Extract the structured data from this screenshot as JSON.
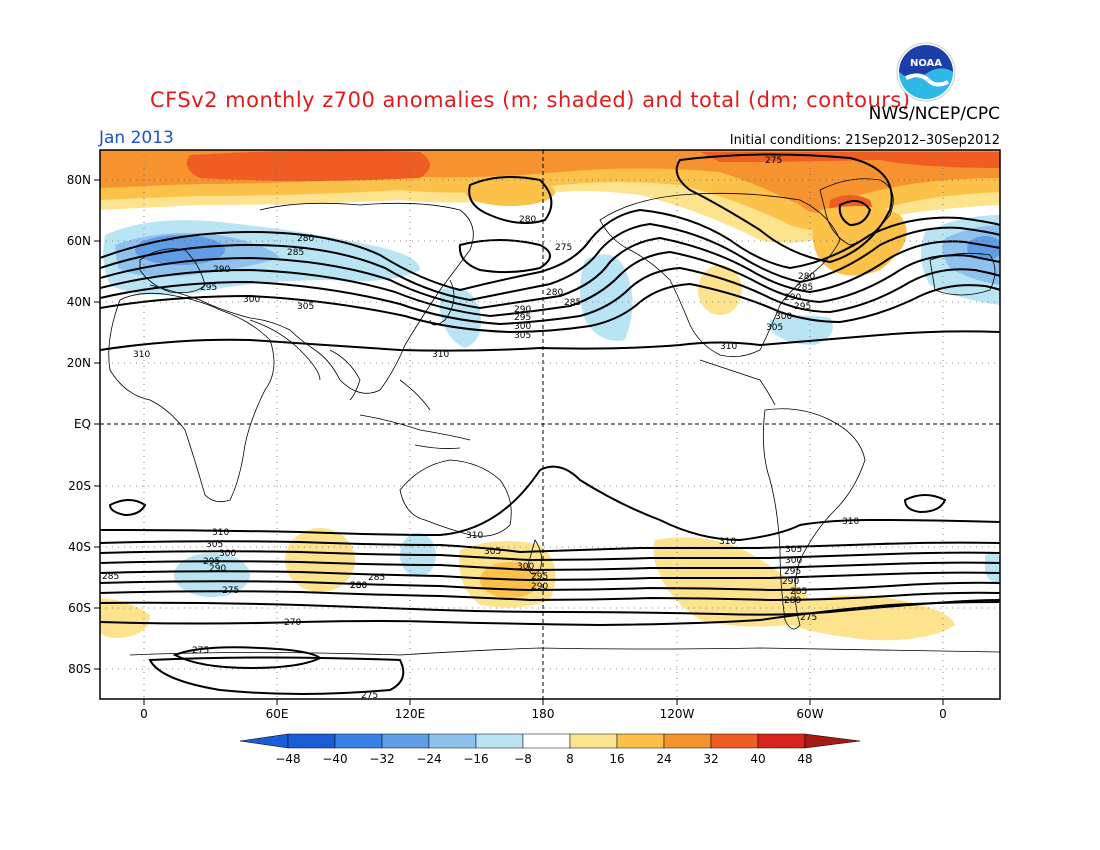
{
  "header": {
    "title": "CFSv2 monthly z700 anomalies (m; shaded) and total (dm; contours)",
    "agency": "NWS/NCEP/CPC",
    "period": "Jan 2013",
    "initial_conditions": "Initial conditions: 21Sep2012–30Sep2012",
    "logo_text": "NOAA"
  },
  "map": {
    "lat_labels": [
      "80N",
      "60N",
      "40N",
      "20N",
      "EQ",
      "20S",
      "40S",
      "60S",
      "80S"
    ],
    "lon_labels": [
      "0",
      "60E",
      "120E",
      "180",
      "120W",
      "60W",
      "0"
    ],
    "colors": {
      "neg48": "#1b5dd6",
      "neg40": "#3b82e8",
      "neg32": "#5f9de6",
      "neg24": "#8fc1ef",
      "neg16": "#b8e4f4",
      "zero": "#ffffff",
      "pos8": "#fde38e",
      "pos16": "#fbc149",
      "pos24": "#f7932f",
      "pos32": "#f05d23",
      "pos40": "#d8241b",
      "contour": "#000000"
    },
    "contour_labels": [
      {
        "id": "c275-npac",
        "text": "275"
      },
      {
        "id": "c280-npac",
        "text": "280"
      },
      {
        "id": "c280-eu",
        "text": "280"
      },
      {
        "id": "c285-eu",
        "text": "285"
      },
      {
        "id": "c290-eu",
        "text": "290"
      },
      {
        "id": "c295-eu",
        "text": "295"
      },
      {
        "id": "c300-eu",
        "text": "300"
      },
      {
        "id": "c305-as",
        "text": "305"
      },
      {
        "id": "c310-eq",
        "text": "310"
      },
      {
        "id": "c310-as",
        "text": "310"
      },
      {
        "id": "c280-pac",
        "text": "280"
      },
      {
        "id": "c285-pac",
        "text": "285"
      },
      {
        "id": "c290-pac",
        "text": "290"
      },
      {
        "id": "c295-pac",
        "text": "295"
      },
      {
        "id": "c300-pac",
        "text": "300"
      },
      {
        "id": "c305-pac",
        "text": "305"
      },
      {
        "id": "c275-gr",
        "text": "275"
      },
      {
        "id": "c280-na",
        "text": "280"
      },
      {
        "id": "c285-na",
        "text": "285"
      },
      {
        "id": "c290-na",
        "text": "290"
      },
      {
        "id": "c295-na",
        "text": "295"
      },
      {
        "id": "c300-na",
        "text": "300"
      },
      {
        "id": "c305-na",
        "text": "305"
      },
      {
        "id": "c310-na",
        "text": "310"
      },
      {
        "id": "c310-sa",
        "text": "310"
      },
      {
        "id": "c305-sa",
        "text": "305"
      },
      {
        "id": "c300-sa",
        "text": "300"
      },
      {
        "id": "c295-sa",
        "text": "295"
      },
      {
        "id": "c290-sa",
        "text": "290"
      },
      {
        "id": "c285-sa",
        "text": "285"
      },
      {
        "id": "c280-sa",
        "text": "280"
      },
      {
        "id": "c275-sa",
        "text": "275"
      },
      {
        "id": "c310-sio",
        "text": "310"
      },
      {
        "id": "c305-sio",
        "text": "305"
      },
      {
        "id": "c300-sio",
        "text": "300"
      },
      {
        "id": "c295-sio",
        "text": "295"
      },
      {
        "id": "c290-sio",
        "text": "290"
      },
      {
        "id": "c285-sio",
        "text": "285"
      },
      {
        "id": "c280-sio",
        "text": "280"
      },
      {
        "id": "c275-sio",
        "text": "275"
      },
      {
        "id": "c270-sio",
        "text": "270"
      },
      {
        "id": "c275-ant",
        "text": "275"
      },
      {
        "id": "c275-ant2",
        "text": "275"
      },
      {
        "id": "c310-aus",
        "text": "310"
      },
      {
        "id": "c305-nz",
        "text": "305"
      },
      {
        "id": "c300-nz",
        "text": "300"
      },
      {
        "id": "c295-nz",
        "text": "295"
      },
      {
        "id": "c290-nz",
        "text": "290"
      },
      {
        "id": "c310-spac",
        "text": "310"
      },
      {
        "id": "c285-sat",
        "text": "285"
      },
      {
        "id": "c280-nz",
        "text": "280"
      }
    ]
  },
  "colorbar": {
    "labels": [
      "-48",
      "-40",
      "-32",
      "-24",
      "-16",
      "-8",
      "8",
      "16",
      "24",
      "32",
      "40",
      "48"
    ],
    "bins": [
      "#1b5dd6",
      "#3b82e8",
      "#5f9de6",
      "#8fc1ef",
      "#b8e4f4",
      "#ffffff",
      "#fde38e",
      "#fbc149",
      "#f7932f",
      "#f05d23",
      "#d8241b"
    ],
    "end_low": "#1b5dd6",
    "end_high": "#a51b14"
  }
}
